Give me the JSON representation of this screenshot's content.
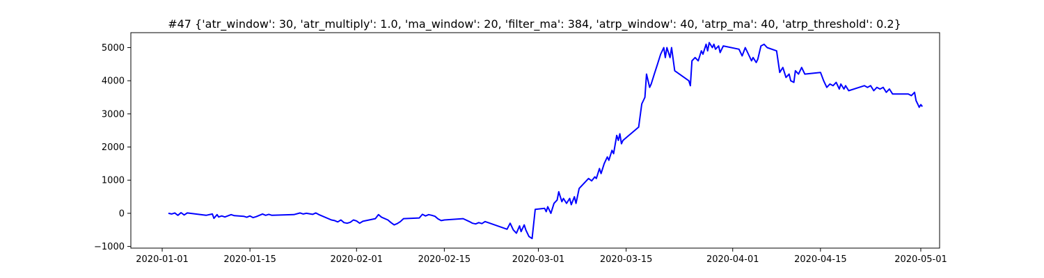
{
  "chart_data": {
    "type": "line",
    "title": "#47 {'atr_window': 30, 'atr_multiply': 1.0, 'ma_window': 20, 'filter_ma': 384, 'atrp_window': 40, 'atrp_ma': 40, 'atrp_threshold': 0.2}",
    "xlabel": "",
    "ylabel": "",
    "x_axis": "date",
    "xlim": [
      "2019-12-27",
      "2020-05-04"
    ],
    "ylim": [
      -1050,
      5450
    ],
    "grid": false,
    "x_ticks": [
      "2020-01-01",
      "2020-01-15",
      "2020-02-01",
      "2020-02-15",
      "2020-03-01",
      "2020-03-15",
      "2020-04-01",
      "2020-04-15",
      "2020-05-01"
    ],
    "y_ticks": [
      -1000,
      0,
      1000,
      2000,
      3000,
      4000,
      5000
    ],
    "series": [
      {
        "color": "#0000ff",
        "points": [
          [
            "2020-01-02",
            0
          ],
          [
            "2020-01-02T12:00",
            -20
          ],
          [
            "2020-01-03",
            10
          ],
          [
            "2020-01-03T12:00",
            -60
          ],
          [
            "2020-01-04",
            20
          ],
          [
            "2020-01-04T12:00",
            -50
          ],
          [
            "2020-01-05",
            10
          ],
          [
            "2020-01-08",
            -60
          ],
          [
            "2020-01-09",
            -20
          ],
          [
            "2020-01-09T06:00",
            -150
          ],
          [
            "2020-01-09T18:00",
            -40
          ],
          [
            "2020-01-10",
            -110
          ],
          [
            "2020-01-10T12:00",
            -80
          ],
          [
            "2020-01-11",
            -110
          ],
          [
            "2020-01-12",
            -40
          ],
          [
            "2020-01-12T12:00",
            -70
          ],
          [
            "2020-01-14",
            -90
          ],
          [
            "2020-01-14T12:00",
            -120
          ],
          [
            "2020-01-15",
            -80
          ],
          [
            "2020-01-15T12:00",
            -130
          ],
          [
            "2020-01-16",
            -100
          ],
          [
            "2020-01-17",
            -20
          ],
          [
            "2020-01-17T12:00",
            -60
          ],
          [
            "2020-01-18",
            -30
          ],
          [
            "2020-01-18T12:00",
            -60
          ],
          [
            "2020-01-22",
            -40
          ],
          [
            "2020-01-23",
            10
          ],
          [
            "2020-01-23T12:00",
            -20
          ],
          [
            "2020-01-24",
            0
          ],
          [
            "2020-01-25",
            -30
          ],
          [
            "2020-01-25T12:00",
            10
          ],
          [
            "2020-01-26",
            -40
          ],
          [
            "2020-01-28",
            -200
          ],
          [
            "2020-01-28T12:00",
            -220
          ],
          [
            "2020-01-29",
            -260
          ],
          [
            "2020-01-29T12:00",
            -200
          ],
          [
            "2020-01-30",
            -280
          ],
          [
            "2020-01-30T12:00",
            -300
          ],
          [
            "2020-01-31",
            -270
          ],
          [
            "2020-01-31T12:00",
            -200
          ],
          [
            "2020-02-01",
            -230
          ],
          [
            "2020-02-01T12:00",
            -300
          ],
          [
            "2020-02-02",
            -240
          ],
          [
            "2020-02-04",
            -160
          ],
          [
            "2020-02-04T12:00",
            -40
          ],
          [
            "2020-02-05",
            -120
          ],
          [
            "2020-02-06",
            -200
          ],
          [
            "2020-02-06T12:00",
            -280
          ],
          [
            "2020-02-07",
            -350
          ],
          [
            "2020-02-07T12:00",
            -310
          ],
          [
            "2020-02-08",
            -250
          ],
          [
            "2020-02-08T12:00",
            -160
          ],
          [
            "2020-02-11",
            -140
          ],
          [
            "2020-02-11T12:00",
            -30
          ],
          [
            "2020-02-12",
            -80
          ],
          [
            "2020-02-12T12:00",
            -40
          ],
          [
            "2020-02-13",
            -60
          ],
          [
            "2020-02-13T12:00",
            -90
          ],
          [
            "2020-02-14",
            -170
          ],
          [
            "2020-02-14T12:00",
            -220
          ],
          [
            "2020-02-15",
            -200
          ],
          [
            "2020-02-18",
            -160
          ],
          [
            "2020-02-19",
            -250
          ],
          [
            "2020-02-19T12:00",
            -300
          ],
          [
            "2020-02-20",
            -320
          ],
          [
            "2020-02-20T12:00",
            -280
          ],
          [
            "2020-02-21",
            -310
          ],
          [
            "2020-02-21T12:00",
            -250
          ],
          [
            "2020-02-22",
            -280
          ],
          [
            "2020-02-25",
            -480
          ],
          [
            "2020-02-25T12:00",
            -300
          ],
          [
            "2020-02-26",
            -500
          ],
          [
            "2020-02-26T12:00",
            -600
          ],
          [
            "2020-02-27",
            -380
          ],
          [
            "2020-02-27T06:00",
            -550
          ],
          [
            "2020-02-27T18:00",
            -350
          ],
          [
            "2020-02-28",
            -500
          ],
          [
            "2020-02-28T12:00",
            -700
          ],
          [
            "2020-02-29",
            -760
          ],
          [
            "2020-02-29T12:00",
            120
          ],
          [
            "2020-03-02",
            150
          ],
          [
            "2020-03-02T06:00",
            50
          ],
          [
            "2020-03-02T12:00",
            200
          ],
          [
            "2020-03-03",
            0
          ],
          [
            "2020-03-03T12:00",
            300
          ],
          [
            "2020-03-04",
            400
          ],
          [
            "2020-03-04T06:00",
            650
          ],
          [
            "2020-03-04T18:00",
            350
          ],
          [
            "2020-03-05",
            450
          ],
          [
            "2020-03-05T12:00",
            300
          ],
          [
            "2020-03-06",
            450
          ],
          [
            "2020-03-06T06:00",
            260
          ],
          [
            "2020-03-06T18:00",
            500
          ],
          [
            "2020-03-07",
            300
          ],
          [
            "2020-03-07T12:00",
            750
          ],
          [
            "2020-03-09",
            1050
          ],
          [
            "2020-03-09T12:00",
            980
          ],
          [
            "2020-03-10",
            1100
          ],
          [
            "2020-03-10T06:00",
            1050
          ],
          [
            "2020-03-10T18:00",
            1350
          ],
          [
            "2020-03-11",
            1200
          ],
          [
            "2020-03-11T12:00",
            1500
          ],
          [
            "2020-03-12",
            1700
          ],
          [
            "2020-03-12T06:00",
            1600
          ],
          [
            "2020-03-12T18:00",
            1900
          ],
          [
            "2020-03-13",
            1800
          ],
          [
            "2020-03-13T12:00",
            2350
          ],
          [
            "2020-03-13T18:00",
            2200
          ],
          [
            "2020-03-14",
            2400
          ],
          [
            "2020-03-14T06:00",
            2100
          ],
          [
            "2020-03-14T12:00",
            2200
          ],
          [
            "2020-03-17",
            2600
          ],
          [
            "2020-03-17T12:00",
            3300
          ],
          [
            "2020-03-18",
            3500
          ],
          [
            "2020-03-18T06:00",
            4200
          ],
          [
            "2020-03-18T18:00",
            3800
          ],
          [
            "2020-03-19",
            3900
          ],
          [
            "2020-03-19T12:00",
            4200
          ],
          [
            "2020-03-20",
            4500
          ],
          [
            "2020-03-20T12:00",
            4800
          ],
          [
            "2020-03-21",
            5000
          ],
          [
            "2020-03-21T06:00",
            4700
          ],
          [
            "2020-03-21T12:00",
            5000
          ],
          [
            "2020-03-22",
            4700
          ],
          [
            "2020-03-22T06:00",
            5000
          ],
          [
            "2020-03-22T18:00",
            4300
          ],
          [
            "2020-03-25",
            4000
          ],
          [
            "2020-03-25T06:00",
            3850
          ],
          [
            "2020-03-25T12:00",
            4600
          ],
          [
            "2020-03-26",
            4700
          ],
          [
            "2020-03-26T12:00",
            4600
          ],
          [
            "2020-03-27",
            4900
          ],
          [
            "2020-03-27T06:00",
            4800
          ],
          [
            "2020-03-27T18:00",
            5100
          ],
          [
            "2020-03-28",
            4900
          ],
          [
            "2020-03-28T06:00",
            5150
          ],
          [
            "2020-03-28T18:00",
            5000
          ],
          [
            "2020-03-29",
            5100
          ],
          [
            "2020-03-29T06:00",
            4950
          ],
          [
            "2020-03-29T18:00",
            5050
          ],
          [
            "2020-03-30",
            4850
          ],
          [
            "2020-03-30T12:00",
            5050
          ],
          [
            "2020-04-02",
            4950
          ],
          [
            "2020-04-02T12:00",
            4750
          ],
          [
            "2020-04-03",
            5000
          ],
          [
            "2020-04-03T12:00",
            4800
          ],
          [
            "2020-04-04",
            4600
          ],
          [
            "2020-04-04T06:00",
            4700
          ],
          [
            "2020-04-04T18:00",
            4550
          ],
          [
            "2020-04-05",
            4650
          ],
          [
            "2020-04-05T12:00",
            5050
          ],
          [
            "2020-04-06",
            5100
          ],
          [
            "2020-04-06T12:00",
            5000
          ],
          [
            "2020-04-08",
            4900
          ],
          [
            "2020-04-08T12:00",
            4250
          ],
          [
            "2020-04-09",
            4400
          ],
          [
            "2020-04-09T12:00",
            4100
          ],
          [
            "2020-04-10",
            4200
          ],
          [
            "2020-04-10T06:00",
            4000
          ],
          [
            "2020-04-10T18:00",
            3950
          ],
          [
            "2020-04-11",
            4300
          ],
          [
            "2020-04-11T12:00",
            4200
          ],
          [
            "2020-04-12",
            4400
          ],
          [
            "2020-04-12T12:00",
            4200
          ],
          [
            "2020-04-15",
            4250
          ],
          [
            "2020-04-15T12:00",
            4000
          ],
          [
            "2020-04-16",
            3800
          ],
          [
            "2020-04-16T12:00",
            3900
          ],
          [
            "2020-04-17",
            3850
          ],
          [
            "2020-04-17T12:00",
            3950
          ],
          [
            "2020-04-18",
            3750
          ],
          [
            "2020-04-18T06:00",
            3900
          ],
          [
            "2020-04-18T18:00",
            3750
          ],
          [
            "2020-04-19",
            3850
          ],
          [
            "2020-04-19T12:00",
            3700
          ],
          [
            "2020-04-22",
            3850
          ],
          [
            "2020-04-22T12:00",
            3800
          ],
          [
            "2020-04-23",
            3850
          ],
          [
            "2020-04-23T12:00",
            3700
          ],
          [
            "2020-04-24",
            3800
          ],
          [
            "2020-04-24T12:00",
            3750
          ],
          [
            "2020-04-25",
            3800
          ],
          [
            "2020-04-25T12:00",
            3650
          ],
          [
            "2020-04-26",
            3750
          ],
          [
            "2020-04-26T12:00",
            3600
          ],
          [
            "2020-04-29",
            3600
          ],
          [
            "2020-04-29T12:00",
            3550
          ],
          [
            "2020-04-30",
            3650
          ],
          [
            "2020-04-30T06:00",
            3400
          ],
          [
            "2020-04-30T12:00",
            3300
          ],
          [
            "2020-04-30T18:00",
            3200
          ],
          [
            "2020-05-01",
            3280
          ],
          [
            "2020-05-01T06:00",
            3220
          ]
        ]
      }
    ]
  }
}
